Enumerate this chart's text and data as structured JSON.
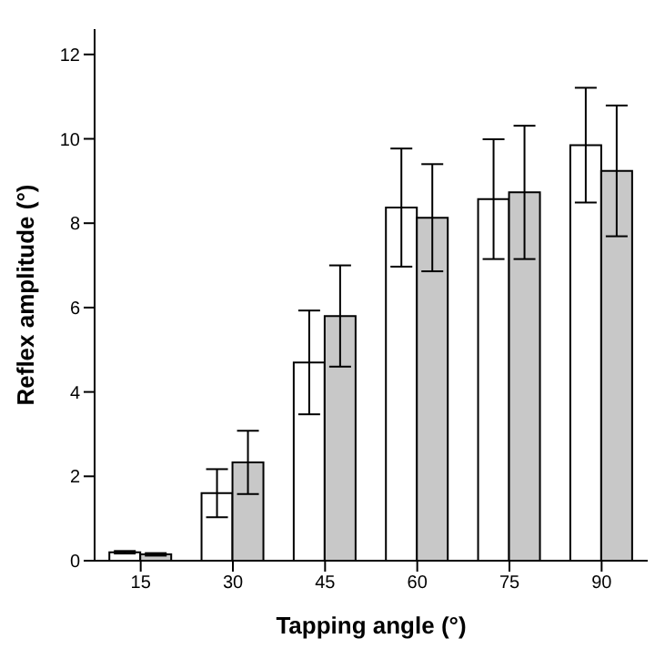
{
  "chart_data": {
    "type": "bar",
    "xlabel": "Tapping angle (°)",
    "ylabel": "Reflex amplitude (°)",
    "categories": [
      "15",
      "30",
      "45",
      "60",
      "75",
      "90"
    ],
    "series": [
      {
        "color": "#ffffff",
        "values": [
          0.2,
          1.6,
          4.7,
          8.37,
          8.57,
          9.85
        ],
        "errors": [
          0.03,
          0.57,
          1.23,
          1.4,
          1.42,
          1.36
        ]
      },
      {
        "color": "#c8c8c8",
        "values": [
          0.15,
          2.33,
          5.8,
          8.13,
          8.73,
          9.24
        ],
        "errors": [
          0.03,
          0.75,
          1.2,
          1.27,
          1.58,
          1.55
        ]
      }
    ],
    "ylim": [
      0,
      12.6
    ],
    "yticks": [
      0,
      2,
      4,
      6,
      8,
      10,
      12
    ],
    "grid": false,
    "legend": false
  }
}
